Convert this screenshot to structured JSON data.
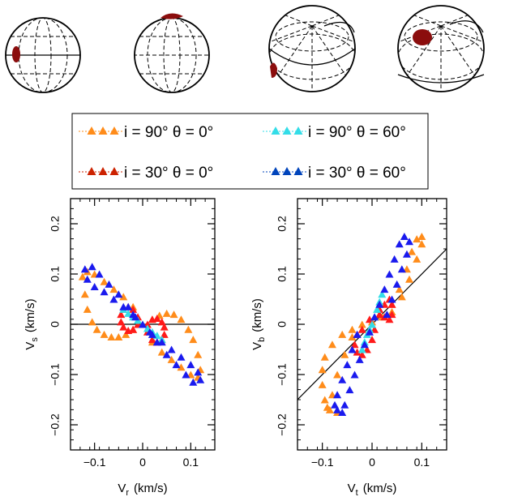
{
  "legend": [
    {
      "label": "i = 90°  θ = 0°",
      "color": "#ff8c1a"
    },
    {
      "label": "i = 90°  θ = 60°",
      "color": "#33dde8"
    },
    {
      "label": "i = 30°  θ = 0°",
      "color": "#cc2200"
    },
    {
      "label": "i = 30°  θ = 60°",
      "color": "#0044bb"
    }
  ],
  "colors": {
    "orange": "#ff8c1a",
    "cyan": "#33dde8",
    "red": "#ff1a1a",
    "darkred": "#cc2200",
    "blue": "#1a1aee",
    "spot": "#8b0d0d"
  },
  "spheres": {
    "count": 4,
    "grid": "dashed",
    "spot_color": "#8b0d0d"
  },
  "chart_data": [
    {
      "type": "scatter",
      "xlabel_main": "V",
      "xlabel_sub": "r",
      "xlabel_unit": "(km/s)",
      "ylabel_main": "V",
      "ylabel_sub": "s",
      "ylabel_unit": "(km/s)",
      "xlim": [
        -0.15,
        0.15
      ],
      "ylim": [
        -0.25,
        0.25
      ],
      "xticks": [
        -0.1,
        0,
        0.1
      ],
      "xtick_labels": [
        "−0.1",
        "0",
        "0.1"
      ],
      "yticks": [
        -0.2,
        -0.1,
        0,
        0.1,
        0.2
      ],
      "ytick_labels": [
        "−0.2",
        "−0.1",
        "0",
        "0.1",
        "0.2"
      ],
      "reference_line": {
        "slope": 0,
        "intercept": 0
      },
      "series": [
        {
          "name": "i = 90°  θ = 0°",
          "color": "#ff8c1a",
          "points": [
            [
              -0.125,
              0.095
            ],
            [
              -0.12,
              0.06
            ],
            [
              -0.115,
              0.03
            ],
            [
              -0.105,
              0.005
            ],
            [
              -0.095,
              -0.01
            ],
            [
              -0.08,
              -0.02
            ],
            [
              -0.065,
              -0.025
            ],
            [
              -0.05,
              -0.025
            ],
            [
              -0.035,
              -0.02
            ],
            [
              -0.02,
              -0.01
            ],
            [
              0,
              0
            ],
            [
              0.02,
              0.01
            ],
            [
              0.035,
              0.018
            ],
            [
              0.05,
              0.022
            ],
            [
              0.065,
              0.02
            ],
            [
              0.08,
              0.01
            ],
            [
              0.095,
              -0.01
            ],
            [
              0.105,
              -0.03
            ],
            [
              0.115,
              -0.06
            ],
            [
              0.12,
              -0.09
            ],
            [
              0.115,
              -0.105
            ],
            [
              0.1,
              -0.1
            ],
            [
              0.08,
              -0.085
            ],
            [
              0.06,
              -0.07
            ],
            [
              0.04,
              -0.055
            ],
            [
              0.02,
              -0.035
            ],
            [
              -0.02,
              0.035
            ],
            [
              -0.04,
              0.055
            ],
            [
              -0.06,
              0.07
            ],
            [
              -0.08,
              0.085
            ],
            [
              -0.1,
              0.1
            ],
            [
              -0.115,
              0.105
            ]
          ]
        },
        {
          "name": "i = 30°  θ = 0°",
          "color": "#ff1a1a",
          "points": [
            [
              -0.045,
              0.005
            ],
            [
              -0.04,
              -0.005
            ],
            [
              -0.03,
              -0.012
            ],
            [
              -0.02,
              -0.01
            ],
            [
              -0.01,
              0
            ],
            [
              0.01,
              0
            ],
            [
              0.02,
              0.01
            ],
            [
              0.03,
              0.012
            ],
            [
              0.04,
              0.005
            ],
            [
              0.045,
              -0.005
            ],
            [
              0.045,
              -0.02
            ],
            [
              0.04,
              -0.03
            ],
            [
              0.03,
              -0.035
            ],
            [
              0.02,
              -0.03
            ],
            [
              0.01,
              -0.015
            ],
            [
              -0.01,
              0.015
            ],
            [
              -0.02,
              0.03
            ],
            [
              -0.03,
              0.035
            ],
            [
              -0.04,
              0.03
            ],
            [
              -0.045,
              0.02
            ]
          ]
        },
        {
          "name": "i = 90°  θ = 60°",
          "color": "#33dde8",
          "points": [
            [
              -0.04,
              0.03
            ],
            [
              -0.03,
              0.022
            ],
            [
              -0.02,
              0.015
            ],
            [
              -0.01,
              0.008
            ],
            [
              0,
              0
            ],
            [
              0.01,
              -0.008
            ],
            [
              0.02,
              -0.015
            ],
            [
              0.03,
              -0.022
            ],
            [
              0.04,
              -0.03
            ]
          ]
        },
        {
          "name": "i = 30°  θ = 60°",
          "color": "#1a1aee",
          "points": [
            [
              -0.12,
              0.11
            ],
            [
              -0.105,
              0.115
            ],
            [
              -0.09,
              0.1
            ],
            [
              -0.07,
              0.08
            ],
            [
              -0.05,
              0.06
            ],
            [
              -0.03,
              0.035
            ],
            [
              -0.015,
              0.015
            ],
            [
              0,
              0
            ],
            [
              0.015,
              -0.015
            ],
            [
              0.03,
              -0.035
            ],
            [
              0.05,
              -0.06
            ],
            [
              0.07,
              -0.08
            ],
            [
              0.09,
              -0.1
            ],
            [
              0.105,
              -0.115
            ],
            [
              0.12,
              -0.11
            ],
            [
              0.115,
              -0.095
            ],
            [
              0.1,
              -0.08
            ],
            [
              0.08,
              -0.065
            ],
            [
              0.06,
              -0.05
            ],
            [
              0.04,
              -0.035
            ],
            [
              0.02,
              -0.02
            ],
            [
              -0.02,
              0.02
            ],
            [
              -0.04,
              0.035
            ],
            [
              -0.06,
              0.05
            ],
            [
              -0.08,
              0.065
            ],
            [
              -0.1,
              0.075
            ],
            [
              -0.115,
              0.09
            ]
          ]
        }
      ]
    },
    {
      "type": "scatter",
      "xlabel_main": "V",
      "xlabel_sub": "t",
      "xlabel_unit": "(km/s)",
      "ylabel_main": "V",
      "ylabel_sub": "b",
      "ylabel_unit": "(km/s)",
      "xlim": [
        -0.15,
        0.15
      ],
      "ylim": [
        -0.25,
        0.25
      ],
      "xticks": [
        -0.1,
        0,
        0.1
      ],
      "xtick_labels": [
        "−0.1",
        "0",
        "0.1"
      ],
      "yticks": [
        -0.2,
        -0.1,
        0,
        0.1,
        0.2
      ],
      "ytick_labels": [
        "−0.2",
        "−0.1",
        "0",
        "0.1",
        "0.2"
      ],
      "reference_line": {
        "slope": 1.0,
        "intercept": 0
      },
      "series": [
        {
          "name": "i = 90°  θ = 0°",
          "color": "#ff8c1a",
          "points": [
            [
              -0.07,
              -0.175
            ],
            [
              -0.085,
              -0.17
            ],
            [
              -0.095,
              -0.15
            ],
            [
              -0.1,
              -0.12
            ],
            [
              -0.1,
              -0.09
            ],
            [
              -0.095,
              -0.065
            ],
            [
              -0.08,
              -0.04
            ],
            [
              -0.06,
              -0.02
            ],
            [
              -0.04,
              -0.01
            ],
            [
              -0.02,
              0
            ],
            [
              0,
              0.005
            ],
            [
              0.02,
              0.015
            ],
            [
              0.04,
              0.04
            ],
            [
              0.055,
              0.07
            ],
            [
              0.07,
              0.11
            ],
            [
              0.08,
              0.145
            ],
            [
              0.09,
              0.17
            ],
            [
              0.1,
              0.175
            ],
            [
              0.1,
              0.16
            ],
            [
              0.09,
              0.13
            ],
            [
              0.075,
              0.09
            ],
            [
              0.06,
              0.055
            ],
            [
              0.04,
              0.025
            ],
            [
              -0.04,
              -0.025
            ],
            [
              -0.055,
              -0.06
            ],
            [
              -0.07,
              -0.1
            ],
            [
              -0.08,
              -0.14
            ],
            [
              -0.09,
              -0.165
            ]
          ]
        },
        {
          "name": "i = 30°  θ = 0°",
          "color": "#ff1a1a",
          "points": [
            [
              -0.035,
              -0.04
            ],
            [
              -0.03,
              -0.055
            ],
            [
              -0.02,
              -0.06
            ],
            [
              -0.01,
              -0.05
            ],
            [
              0,
              -0.03
            ],
            [
              0.005,
              -0.01
            ],
            [
              0.015,
              0.02
            ],
            [
              0.025,
              0.04
            ],
            [
              0.035,
              0.05
            ],
            [
              0.04,
              0.04
            ],
            [
              0.04,
              0.02
            ],
            [
              0.035,
              0.01
            ],
            [
              0.025,
              0.015
            ],
            [
              0.015,
              0.03
            ],
            [
              -0.005,
              0.01
            ],
            [
              -0.02,
              -0.01
            ],
            [
              -0.03,
              -0.02
            ]
          ]
        },
        {
          "name": "i = 90°  θ = 60°",
          "color": "#33dde8",
          "points": [
            [
              -0.02,
              -0.05
            ],
            [
              -0.015,
              -0.035
            ],
            [
              -0.01,
              -0.02
            ],
            [
              -0.005,
              -0.01
            ],
            [
              0,
              0
            ],
            [
              0.005,
              0.015
            ],
            [
              0.01,
              0.03
            ],
            [
              0.015,
              0.045
            ],
            [
              0.02,
              0.06
            ]
          ]
        },
        {
          "name": "i = 30°  θ = 60°",
          "color": "#1a1aee",
          "points": [
            [
              -0.07,
              -0.17
            ],
            [
              -0.06,
              -0.175
            ],
            [
              -0.055,
              -0.16
            ],
            [
              -0.045,
              -0.13
            ],
            [
              -0.035,
              -0.1
            ],
            [
              -0.025,
              -0.07
            ],
            [
              -0.015,
              -0.04
            ],
            [
              -0.005,
              -0.015
            ],
            [
              0.005,
              0.015
            ],
            [
              0.015,
              0.04
            ],
            [
              0.025,
              0.07
            ],
            [
              0.035,
              0.1
            ],
            [
              0.045,
              0.13
            ],
            [
              0.055,
              0.16
            ],
            [
              0.065,
              0.175
            ],
            [
              0.075,
              0.165
            ],
            [
              0.07,
              0.14
            ],
            [
              0.06,
              0.11
            ],
            [
              0.05,
              0.08
            ],
            [
              0.04,
              0.05
            ],
            [
              0.03,
              0.02
            ],
            [
              -0.03,
              -0.02
            ],
            [
              -0.04,
              -0.05
            ],
            [
              -0.05,
              -0.08
            ],
            [
              -0.06,
              -0.11
            ],
            [
              -0.07,
              -0.14
            ],
            [
              -0.075,
              -0.16
            ]
          ]
        }
      ]
    }
  ]
}
